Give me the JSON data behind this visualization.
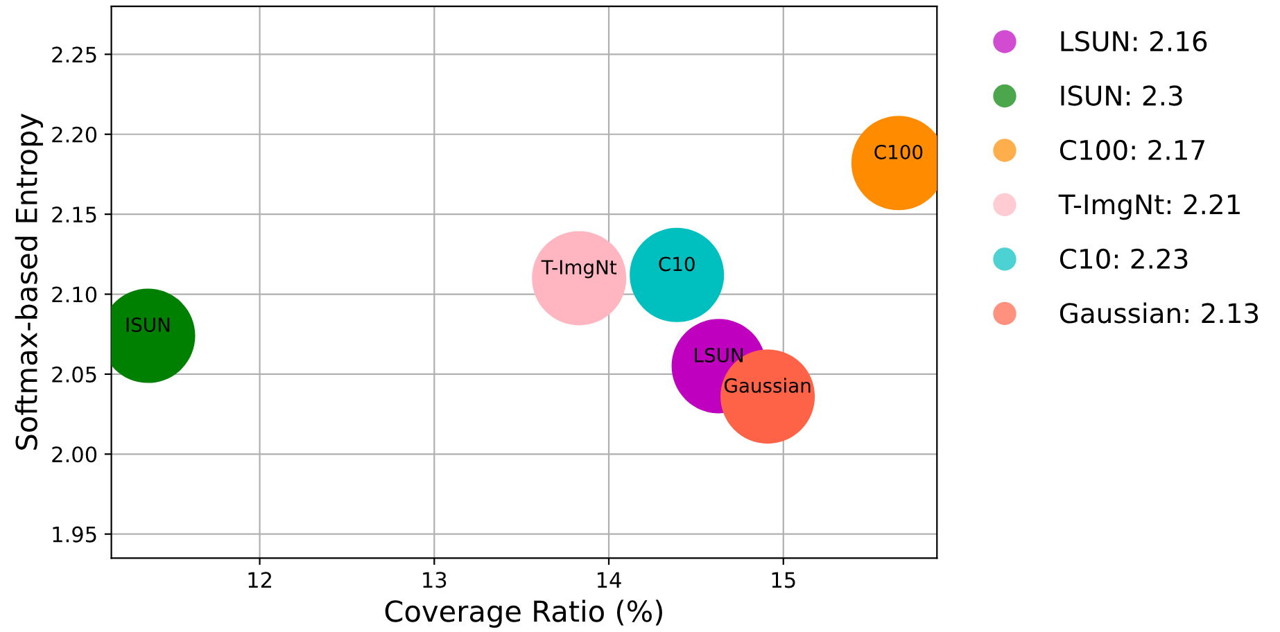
{
  "chart_data": {
    "type": "scatter",
    "xlabel": "Coverage Ratio (%)",
    "ylabel": "Softmax-based Entropy",
    "xlim": [
      11.15,
      15.88
    ],
    "ylim": [
      1.935,
      2.28
    ],
    "xticks": [
      12,
      13,
      14,
      15
    ],
    "yticks": [
      1.95,
      {
        "value": 2.0,
        "label": "2.00"
      },
      2.05,
      {
        "value": 2.1,
        "label": "2.10"
      },
      2.15,
      {
        "value": 2.2,
        "label": "2.20"
      },
      2.25
    ],
    "grid": true,
    "legend": "right",
    "series": [
      {
        "name": "LSUN: 2.16",
        "color": "#bf00bf",
        "x": [
          14.63
        ],
        "values": [
          2.055
        ]
      },
      {
        "name": "ISUN: 2.3",
        "color": "#008000",
        "x": [
          11.36
        ],
        "values": [
          2.074
        ]
      },
      {
        "name": "C100: 2.17",
        "color": "#ff8c00",
        "x": [
          15.66
        ],
        "values": [
          2.182
        ]
      },
      {
        "name": "T-ImgNt: 2.21",
        "color": "#ffb6c1",
        "x": [
          13.83
        ],
        "values": [
          2.11
        ]
      },
      {
        "name": "C10: 2.23",
        "color": "#00bfbf",
        "x": [
          14.39
        ],
        "values": [
          2.112
        ]
      },
      {
        "name": "Gaussian: 2.13",
        "color": "#ff6347",
        "x": [
          14.91
        ],
        "values": [
          2.036
        ]
      }
    ],
    "annotations": [
      {
        "text": "LSUN",
        "x": 14.63,
        "y": 2.055
      },
      {
        "text": "ISUN",
        "x": 11.36,
        "y": 2.074
      },
      {
        "text": "C100",
        "x": 15.66,
        "y": 2.182
      },
      {
        "text": "T-ImgNt",
        "x": 13.83,
        "y": 2.11
      },
      {
        "text": "C10",
        "x": 14.39,
        "y": 2.112
      },
      {
        "text": "Gaussian",
        "x": 14.91,
        "y": 2.036
      }
    ]
  }
}
